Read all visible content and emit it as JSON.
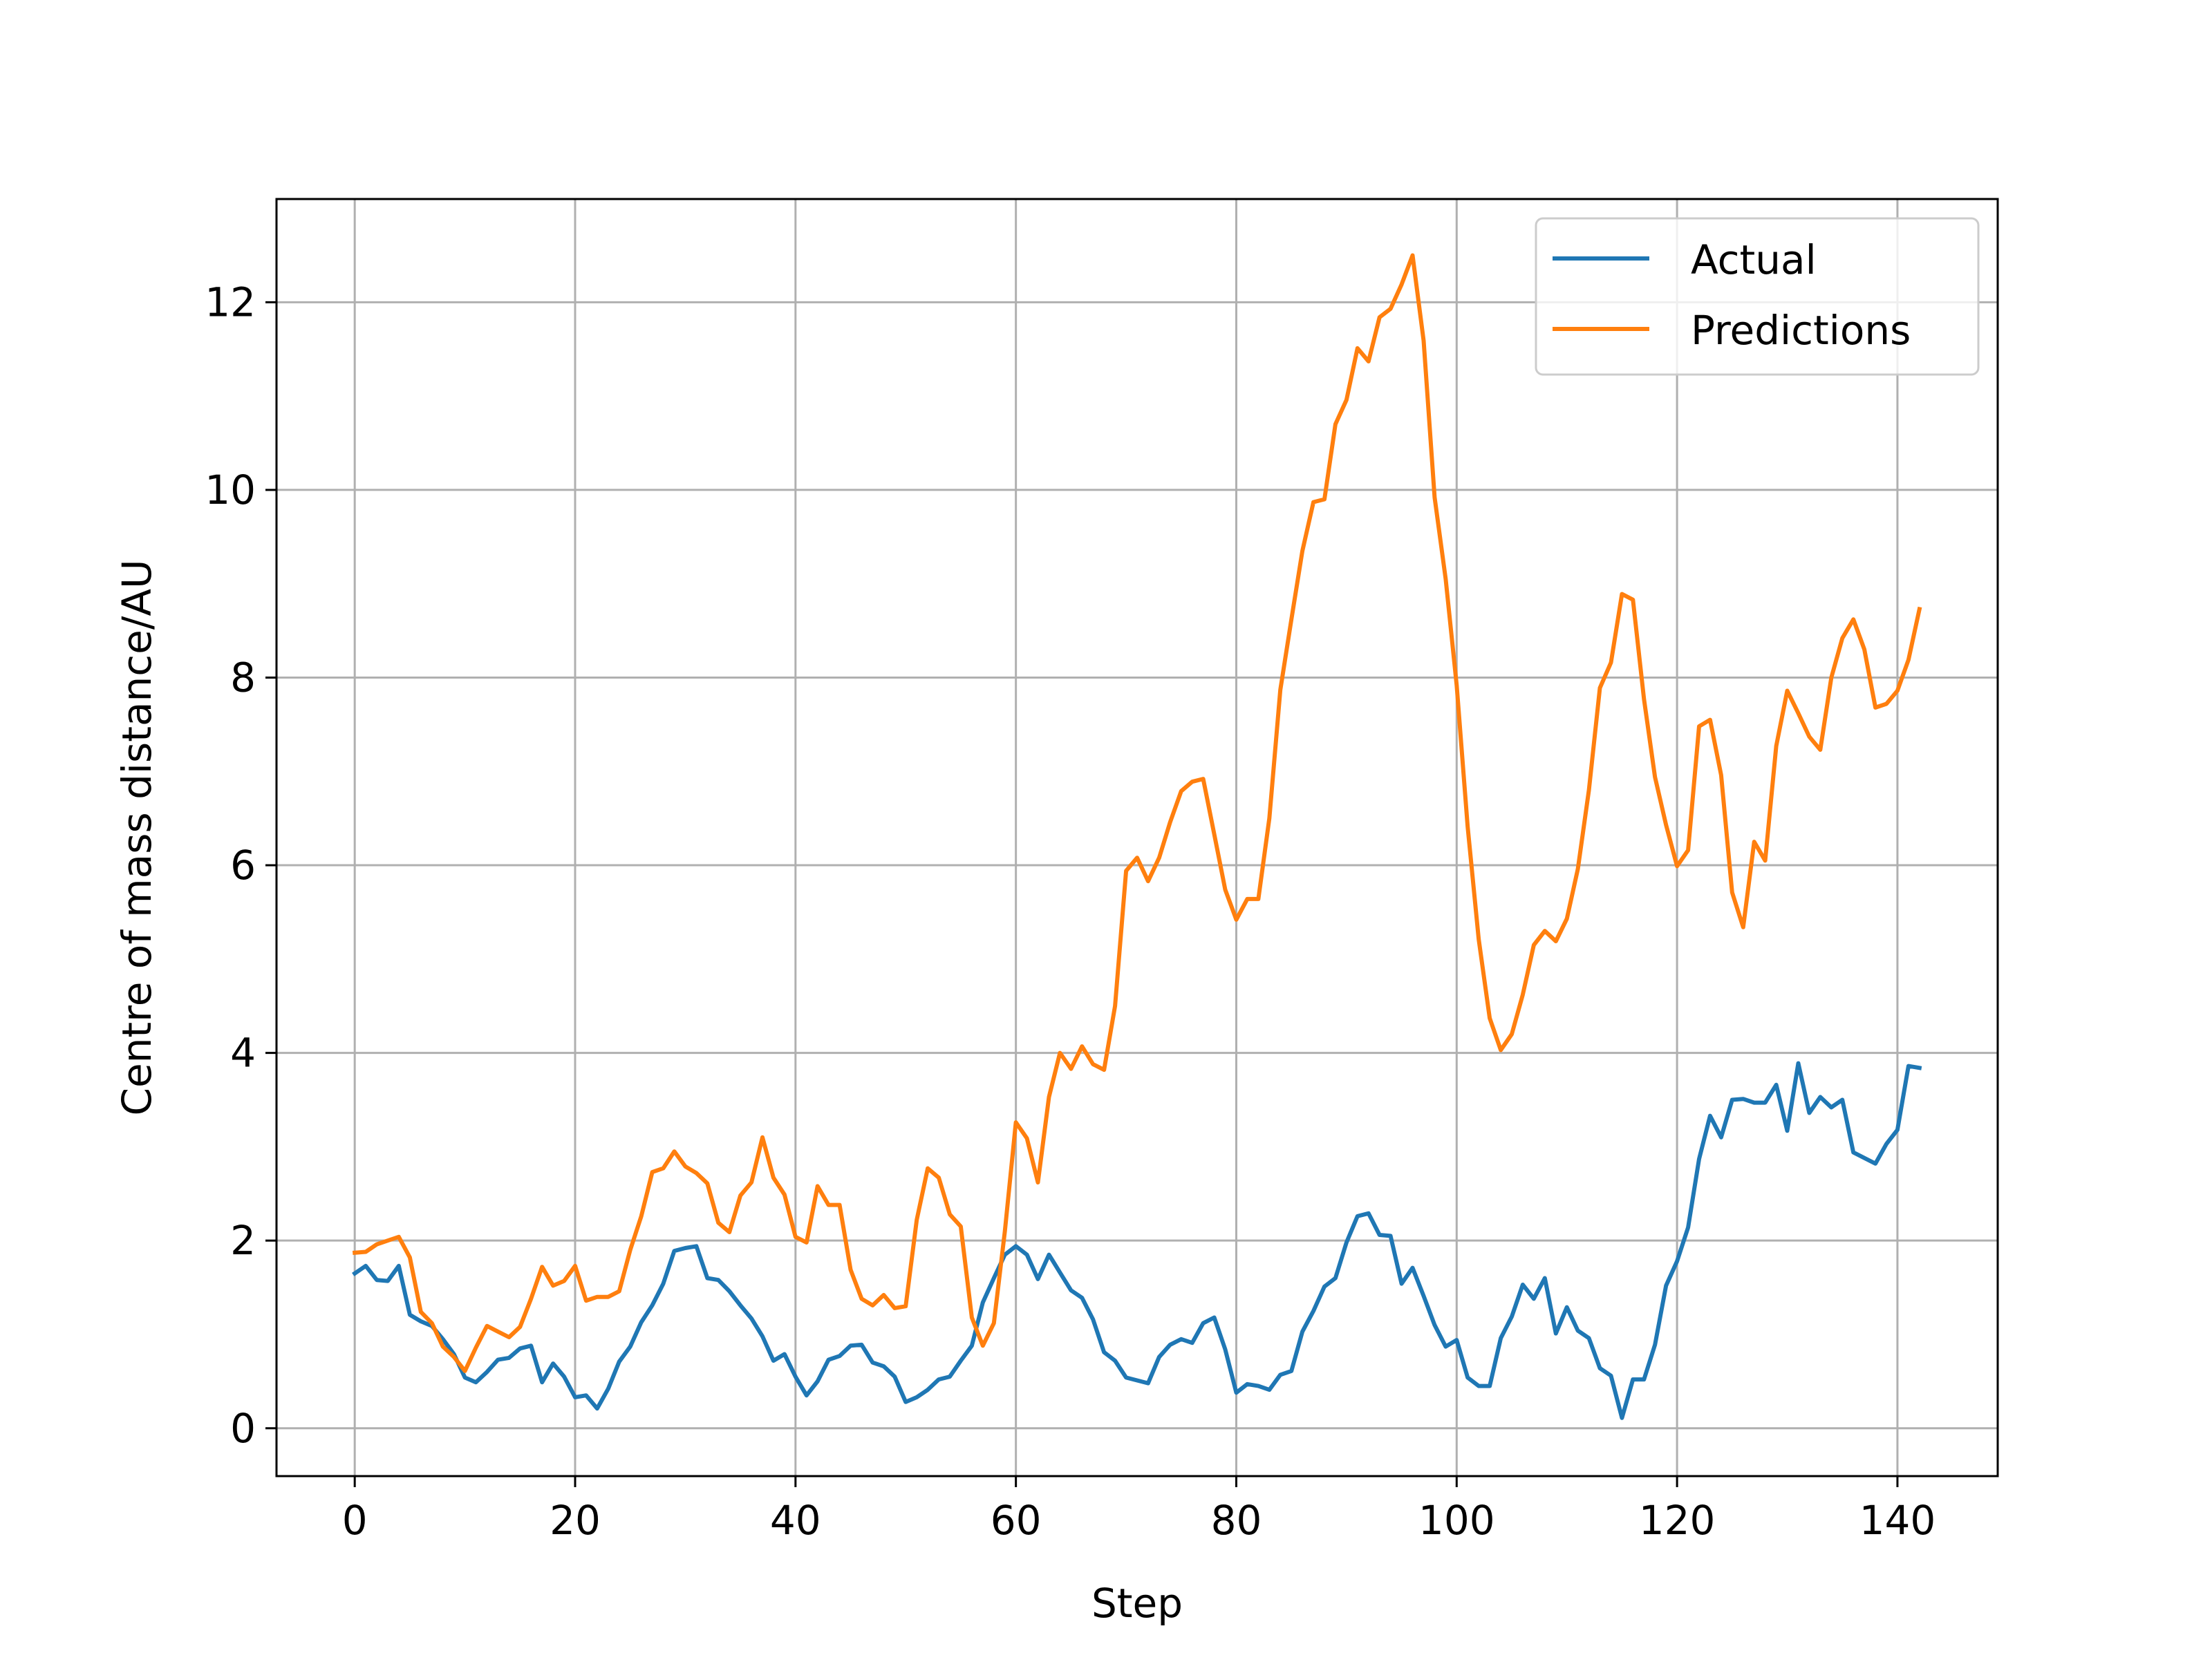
{
  "chart_data": {
    "type": "line",
    "title": "",
    "xlabel": "Step",
    "ylabel": "Centre of mass distance/AU",
    "xlim": [
      -7.1,
      149.1
    ],
    "ylim": [
      -0.51,
      13.1
    ],
    "xticks": [
      0,
      20,
      40,
      60,
      80,
      100,
      120,
      140
    ],
    "yticks": [
      0,
      2,
      4,
      6,
      8,
      10,
      12
    ],
    "grid": true,
    "legend_position": "upper right",
    "series": [
      {
        "name": "Actual",
        "color": "#1f77b4",
        "values": [
          1.65,
          1.73,
          1.58,
          1.57,
          1.73,
          1.21,
          1.14,
          1.09,
          0.95,
          0.79,
          0.54,
          0.49,
          0.6,
          0.73,
          0.75,
          0.85,
          0.88,
          0.49,
          0.69,
          0.55,
          0.33,
          0.35,
          0.21,
          0.42,
          0.71,
          0.87,
          1.13,
          1.31,
          1.54,
          1.89,
          1.92,
          1.94,
          1.6,
          1.58,
          1.46,
          1.31,
          1.17,
          0.98,
          0.72,
          0.79,
          0.55,
          0.35,
          0.5,
          0.73,
          0.77,
          0.88,
          0.89,
          0.7,
          0.66,
          0.55,
          0.28,
          0.33,
          0.41,
          0.52,
          0.55,
          0.72,
          0.88,
          1.34,
          1.6,
          1.85,
          1.94,
          1.85,
          1.59,
          1.85,
          1.66,
          1.47,
          1.39,
          1.16,
          0.81,
          0.72,
          0.54,
          0.51,
          0.48,
          0.76,
          0.89,
          0.95,
          0.91,
          1.12,
          1.18,
          0.84,
          0.38,
          0.47,
          0.45,
          0.41,
          0.57,
          0.61,
          1.03,
          1.25,
          1.51,
          1.6,
          1.98,
          2.26,
          2.29,
          2.06,
          2.05,
          1.54,
          1.71,
          1.41,
          1.1,
          0.87,
          0.94,
          0.54,
          0.45,
          0.45,
          0.96,
          1.19,
          1.53,
          1.38,
          1.6,
          1.01,
          1.29,
          1.04,
          0.96,
          0.64,
          0.56,
          0.11,
          0.52,
          0.52,
          0.89,
          1.52,
          1.78,
          2.14,
          2.87,
          3.33,
          3.1,
          3.5,
          3.51,
          3.47,
          3.47,
          3.66,
          3.17,
          3.89,
          3.36,
          3.53,
          3.42,
          3.5,
          2.94,
          2.88,
          2.82,
          3.03,
          3.18,
          3.86,
          3.84
        ]
      },
      {
        "name": "Predictions",
        "color": "#ff7f0e",
        "values": [
          1.87,
          1.88,
          1.96,
          2.0,
          2.04,
          1.82,
          1.24,
          1.12,
          0.87,
          0.76,
          0.61,
          0.86,
          1.09,
          1.03,
          0.97,
          1.08,
          1.38,
          1.72,
          1.52,
          1.57,
          1.73,
          1.36,
          1.4,
          1.4,
          1.46,
          1.9,
          2.26,
          2.73,
          2.77,
          2.95,
          2.79,
          2.72,
          2.61,
          2.19,
          2.09,
          2.48,
          2.62,
          3.1,
          2.67,
          2.49,
          2.04,
          1.98,
          2.58,
          2.38,
          2.38,
          1.69,
          1.38,
          1.31,
          1.42,
          1.28,
          1.3,
          2.22,
          2.77,
          2.67,
          2.28,
          2.15,
          1.18,
          0.88,
          1.12,
          2.1,
          3.26,
          3.09,
          2.62,
          3.53,
          4.0,
          3.83,
          4.07,
          3.88,
          3.82,
          4.5,
          5.94,
          6.08,
          5.83,
          6.08,
          6.46,
          6.79,
          6.89,
          6.92,
          6.33,
          5.74,
          5.42,
          5.64,
          5.64,
          6.5,
          7.87,
          8.62,
          9.35,
          9.87,
          9.9,
          10.7,
          10.96,
          11.51,
          11.37,
          11.84,
          11.93,
          12.19,
          12.5,
          11.59,
          9.92,
          9.05,
          7.92,
          6.41,
          5.21,
          4.37,
          4.03,
          4.2,
          4.62,
          5.15,
          5.3,
          5.19,
          5.43,
          5.96,
          6.8,
          7.89,
          8.16,
          8.89,
          8.83,
          7.77,
          6.94,
          6.43,
          5.99,
          6.16,
          7.48,
          7.55,
          6.96,
          5.71,
          5.34,
          6.25,
          6.05,
          7.27,
          7.86,
          7.62,
          7.37,
          7.23,
          8.0,
          8.42,
          8.62,
          8.3,
          7.68,
          7.72,
          7.86,
          8.19,
          8.73
        ]
      }
    ]
  }
}
